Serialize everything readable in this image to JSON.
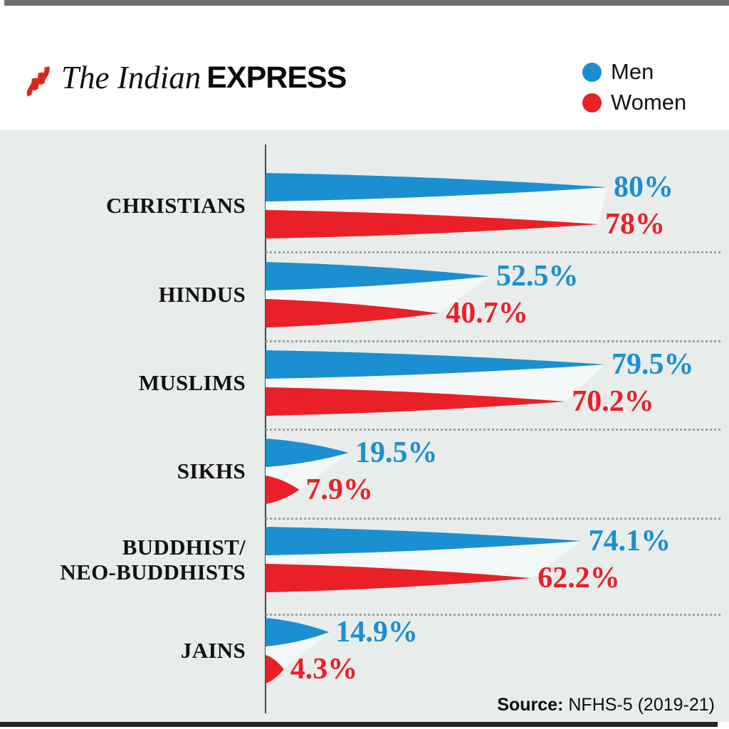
{
  "masthead": {
    "title_serif": "The Indian",
    "title_sans": "EXPRESS"
  },
  "legend": {
    "items": [
      {
        "label": "Men",
        "color": "#1b8fd0"
      },
      {
        "label": "Women",
        "color": "#e92027"
      }
    ]
  },
  "source": {
    "prefix": "Source:",
    "text": " NFHS-5 (2019-21)"
  },
  "chart_data": {
    "type": "bar",
    "orientation": "horizontal",
    "bar_shape": "tapered-wedge",
    "title": "",
    "categories": [
      "CHRISTIANS",
      "HINDUS",
      "MUSLIMS",
      "SIKHS",
      "BUDDHIST/NEO-BUDDHISTS",
      "JAINS"
    ],
    "category_display_lines": [
      [
        "CHRISTIANS"
      ],
      [
        "HINDUS"
      ],
      [
        "MUSLIMS"
      ],
      [
        "SIKHS"
      ],
      [
        "BUDDHIST/",
        "NEO-BUDDHISTS"
      ],
      [
        "JAINS"
      ]
    ],
    "series": [
      {
        "name": "Men",
        "color": "#1b8fd0",
        "values": [
          80,
          52.5,
          79.5,
          19.5,
          74.1,
          14.9
        ],
        "value_labels": [
          "80%",
          "52.5%",
          "79.5%",
          "19.5%",
          "74.1%",
          "14.9%"
        ]
      },
      {
        "name": "Women",
        "color": "#e92027",
        "values": [
          78,
          40.7,
          70.2,
          7.9,
          62.2,
          4.3
        ],
        "value_labels": [
          "78%",
          "40.7%",
          "70.2%",
          "7.9%",
          "62.2%",
          "4.3%"
        ]
      }
    ],
    "xlim": [
      0,
      100
    ],
    "legend_position": "top-right",
    "grid": "dotted-row-separators",
    "source": "NFHS-5 (2019-21)"
  },
  "colors": {
    "men": "#1b8fd0",
    "women": "#e92027",
    "chart_bg": "#e8edec",
    "axis": "#44484a",
    "separator": "#98a1a2",
    "gap_highlight": "#f4f8f8",
    "top_bar": "#6f6f6f",
    "bottom_bar": "#222222",
    "flame": "#d8281e",
    "text": "#121212"
  }
}
